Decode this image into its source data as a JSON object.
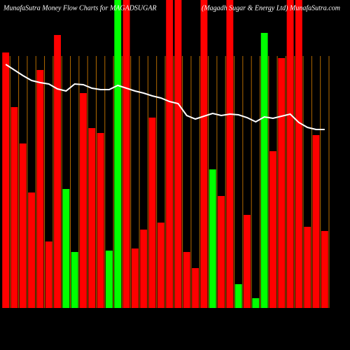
{
  "chart_data": {
    "type": "bar",
    "title": "MunafaSutra  Money Flow  Charts for MAGADSUGAR",
    "subtitle": "(Magadh Sugar & Energy Ltd) MunafaSutra.com",
    "ylim": [
      0,
      440
    ],
    "series": [
      {
        "type": "bar",
        "values": [
          365,
          287,
          235,
          165,
          340,
          95,
          390,
          170,
          80,
          307,
          257,
          250,
          82,
          440,
          440,
          85,
          112,
          272,
          122,
          440,
          440,
          80,
          57,
          440,
          198,
          160,
          440,
          34,
          133,
          14,
          393,
          224,
          357,
          440,
          440,
          116,
          247,
          110
        ],
        "colors": [
          "#ff0000",
          "#ff0000",
          "#ff0000",
          "#ff0000",
          "#ff0000",
          "#ff0000",
          "#ff0000",
          "#00ff00",
          "#00ff00",
          "#ff0000",
          "#ff0000",
          "#ff0000",
          "#00ff00",
          "#00ff00",
          "#ff0000",
          "#ff0000",
          "#ff0000",
          "#ff0000",
          "#ff0000",
          "#ff0000",
          "#ff0000",
          "#ff0000",
          "#ff0000",
          "#ff0000",
          "#00ff00",
          "#ff0000",
          "#ff0000",
          "#00ff00",
          "#ff0000",
          "#00ff00",
          "#00ff00",
          "#ff0000",
          "#ff0000",
          "#ff0000",
          "#ff0000",
          "#ff0000",
          "#ff0000",
          "#ff0000"
        ]
      },
      {
        "type": "line",
        "color": "#ffffff",
        "values": [
          348,
          340,
          332,
          325,
          322,
          320,
          313,
          310,
          320,
          319,
          314,
          312,
          312,
          318,
          314,
          310,
          307,
          303,
          300,
          295,
          292,
          275,
          270,
          274,
          278,
          275,
          277,
          276,
          272,
          266,
          273,
          271,
          274,
          277,
          265,
          258,
          255,
          255
        ]
      }
    ],
    "grid_color": "#b36b00"
  }
}
